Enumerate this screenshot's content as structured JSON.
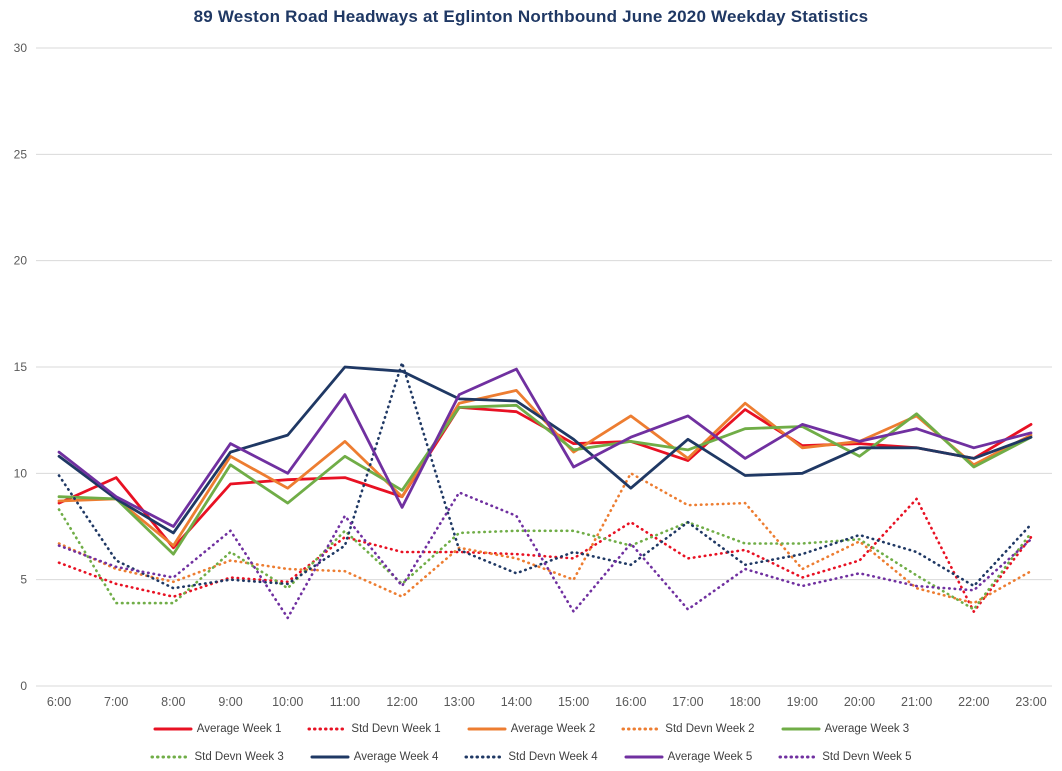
{
  "chart_data": {
    "type": "line",
    "title": "89 Weston Road Headways at Eglinton Northbound June 2020 Weekday Statistics",
    "xlabel": "",
    "ylabel": "",
    "ylim": [
      0,
      30
    ],
    "y_ticks": [
      0,
      5,
      10,
      15,
      20,
      25,
      30
    ],
    "grid": "horizontal",
    "legend_position": "bottom",
    "x_labels": [
      "6:00",
      "7:00",
      "8:00",
      "9:00",
      "10:00",
      "11:00",
      "12:00",
      "13:00",
      "14:00",
      "15:00",
      "16:00",
      "17:00",
      "18:00",
      "19:00",
      "20:00",
      "21:00",
      "22:00",
      "23:00"
    ],
    "series": [
      {
        "name": "Average Week 1",
        "color": "#E81123",
        "style": "solid",
        "values": [
          8.6,
          9.8,
          6.5,
          9.5,
          9.7,
          9.8,
          8.9,
          13.1,
          12.9,
          11.4,
          11.5,
          10.6,
          13.0,
          11.3,
          11.4,
          11.2,
          10.7,
          12.3
        ]
      },
      {
        "name": "Std Devn Week 1",
        "color": "#E81123",
        "style": "dotted",
        "values": [
          5.8,
          4.8,
          4.2,
          5.1,
          4.9,
          7.0,
          6.3,
          6.3,
          6.2,
          6.0,
          7.7,
          6.0,
          6.4,
          5.1,
          5.9,
          8.8,
          3.5,
          7.0
        ]
      },
      {
        "name": "Average Week 2",
        "color": "#ED7D31",
        "style": "solid",
        "values": [
          8.7,
          8.8,
          6.6,
          10.8,
          9.3,
          11.5,
          8.9,
          13.3,
          13.9,
          11.0,
          12.7,
          10.7,
          13.3,
          11.2,
          11.5,
          12.7,
          10.4,
          11.8
        ]
      },
      {
        "name": "Std Devn Week 2",
        "color": "#ED7D31",
        "style": "dotted",
        "values": [
          6.7,
          5.5,
          4.9,
          5.9,
          5.5,
          5.4,
          4.2,
          6.5,
          6.0,
          5.0,
          10.0,
          8.5,
          8.6,
          5.5,
          6.8,
          4.6,
          3.9,
          5.4
        ]
      },
      {
        "name": "Average Week 3",
        "color": "#70AD47",
        "style": "solid",
        "values": [
          8.9,
          8.8,
          6.2,
          10.4,
          8.6,
          10.8,
          9.2,
          13.1,
          13.2,
          11.1,
          11.5,
          11.1,
          12.1,
          12.2,
          10.8,
          12.8,
          10.3,
          11.7
        ]
      },
      {
        "name": "Std Devn Week 3",
        "color": "#70AD47",
        "style": "dotted",
        "values": [
          8.3,
          3.9,
          3.9,
          6.3,
          4.6,
          7.3,
          4.8,
          7.2,
          7.3,
          7.3,
          6.6,
          7.7,
          6.7,
          6.7,
          6.9,
          5.2,
          3.6,
          7.2
        ]
      },
      {
        "name": "Average Week 4",
        "color": "#1F3864",
        "style": "solid",
        "values": [
          10.8,
          8.8,
          7.2,
          11.0,
          11.8,
          15.0,
          14.8,
          13.5,
          13.4,
          11.6,
          9.3,
          11.6,
          9.9,
          10.0,
          11.2,
          11.2,
          10.7,
          11.7
        ]
      },
      {
        "name": "Std Devn Week 4",
        "color": "#1F3864",
        "style": "dotted",
        "values": [
          9.9,
          5.9,
          4.6,
          5.0,
          4.8,
          6.6,
          15.2,
          6.4,
          5.3,
          6.3,
          5.7,
          7.7,
          5.7,
          6.2,
          7.1,
          6.3,
          4.7,
          7.6
        ]
      },
      {
        "name": "Average Week 5",
        "color": "#7030A0",
        "style": "solid",
        "values": [
          11.0,
          8.9,
          7.5,
          11.4,
          10.0,
          13.7,
          8.4,
          13.7,
          14.9,
          10.3,
          11.7,
          12.7,
          10.7,
          12.3,
          11.5,
          12.1,
          11.2,
          11.9
        ]
      },
      {
        "name": "Std Devn Week 5",
        "color": "#7030A0",
        "style": "dotted",
        "values": [
          6.6,
          5.6,
          5.1,
          7.3,
          3.2,
          8.0,
          4.7,
          9.1,
          8.0,
          3.5,
          6.7,
          3.6,
          5.5,
          4.7,
          5.3,
          4.7,
          4.5,
          6.9
        ]
      }
    ],
    "legend_rows": [
      [
        0,
        1,
        2,
        3,
        4
      ],
      [
        5,
        6,
        7,
        8,
        9
      ]
    ]
  },
  "colors": {
    "title": "#1F3864",
    "axis_text": "#595959",
    "gridline": "#D9D9D9",
    "background": "#FFFFFF"
  }
}
